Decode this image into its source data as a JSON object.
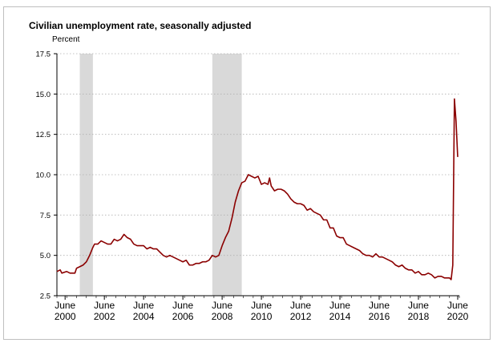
{
  "chart_data": {
    "type": "line",
    "title": "Civilian unemployment rate, seasonally adjusted",
    "ylabel": "Percent",
    "xlabel": "",
    "ylim": [
      2.5,
      17.5
    ],
    "xlim": [
      "2000-01",
      "2020-07"
    ],
    "y_ticks": [
      "2.5",
      "5.0",
      "7.5",
      "10.0",
      "12.5",
      "15.0",
      "17.5"
    ],
    "x_ticks": [
      {
        "month": "June",
        "year": "2000",
        "date": "2000-06"
      },
      {
        "month": "June",
        "year": "2002",
        "date": "2002-06"
      },
      {
        "month": "June",
        "year": "2004",
        "date": "2004-06"
      },
      {
        "month": "June",
        "year": "2006",
        "date": "2006-06"
      },
      {
        "month": "June",
        "year": "2008",
        "date": "2008-06"
      },
      {
        "month": "June",
        "year": "2010",
        "date": "2010-06"
      },
      {
        "month": "June",
        "year": "2012",
        "date": "2012-06"
      },
      {
        "month": "June",
        "year": "2014",
        "date": "2014-06"
      },
      {
        "month": "June",
        "year": "2016",
        "date": "2016-06"
      },
      {
        "month": "June",
        "year": "2018",
        "date": "2018-06"
      },
      {
        "month": "June",
        "year": "2020",
        "date": "2020-06"
      }
    ],
    "grid": "horizontal-dotted",
    "recessions": [
      {
        "start": "2001-03",
        "end": "2001-11"
      },
      {
        "start": "2007-12",
        "end": "2009-06"
      }
    ],
    "series": [
      {
        "color": "#8b0000",
        "points": [
          [
            "2000-01",
            4.0
          ],
          [
            "2000-03",
            4.1
          ],
          [
            "2000-04",
            3.9
          ],
          [
            "2000-07",
            4.0
          ],
          [
            "2000-09",
            3.9
          ],
          [
            "2000-10",
            3.9
          ],
          [
            "2000-12",
            3.9
          ],
          [
            "2001-01",
            4.2
          ],
          [
            "2001-03",
            4.3
          ],
          [
            "2001-05",
            4.4
          ],
          [
            "2001-07",
            4.6
          ],
          [
            "2001-09",
            5.0
          ],
          [
            "2001-11",
            5.5
          ],
          [
            "2001-12",
            5.7
          ],
          [
            "2002-02",
            5.7
          ],
          [
            "2002-04",
            5.9
          ],
          [
            "2002-06",
            5.8
          ],
          [
            "2002-08",
            5.7
          ],
          [
            "2002-10",
            5.7
          ],
          [
            "2002-12",
            6.0
          ],
          [
            "2003-02",
            5.9
          ],
          [
            "2003-04",
            6.0
          ],
          [
            "2003-06",
            6.3
          ],
          [
            "2003-08",
            6.1
          ],
          [
            "2003-10",
            6.0
          ],
          [
            "2003-12",
            5.7
          ],
          [
            "2004-02",
            5.6
          ],
          [
            "2004-04",
            5.6
          ],
          [
            "2004-06",
            5.6
          ],
          [
            "2004-08",
            5.4
          ],
          [
            "2004-10",
            5.5
          ],
          [
            "2004-12",
            5.4
          ],
          [
            "2005-02",
            5.4
          ],
          [
            "2005-04",
            5.2
          ],
          [
            "2005-06",
            5.0
          ],
          [
            "2005-08",
            4.9
          ],
          [
            "2005-10",
            5.0
          ],
          [
            "2005-12",
            4.9
          ],
          [
            "2006-02",
            4.8
          ],
          [
            "2006-04",
            4.7
          ],
          [
            "2006-06",
            4.6
          ],
          [
            "2006-08",
            4.7
          ],
          [
            "2006-10",
            4.4
          ],
          [
            "2006-12",
            4.4
          ],
          [
            "2007-02",
            4.5
          ],
          [
            "2007-04",
            4.5
          ],
          [
            "2007-06",
            4.6
          ],
          [
            "2007-08",
            4.6
          ],
          [
            "2007-10",
            4.7
          ],
          [
            "2007-12",
            5.0
          ],
          [
            "2008-02",
            4.9
          ],
          [
            "2008-04",
            5.0
          ],
          [
            "2008-06",
            5.6
          ],
          [
            "2008-08",
            6.1
          ],
          [
            "2008-10",
            6.5
          ],
          [
            "2008-12",
            7.3
          ],
          [
            "2009-02",
            8.3
          ],
          [
            "2009-04",
            9.0
          ],
          [
            "2009-06",
            9.5
          ],
          [
            "2009-08",
            9.6
          ],
          [
            "2009-10",
            10.0
          ],
          [
            "2009-12",
            9.9
          ],
          [
            "2010-02",
            9.8
          ],
          [
            "2010-04",
            9.9
          ],
          [
            "2010-06",
            9.4
          ],
          [
            "2010-08",
            9.5
          ],
          [
            "2010-10",
            9.4
          ],
          [
            "2010-11",
            9.8
          ],
          [
            "2010-12",
            9.3
          ],
          [
            "2011-02",
            9.0
          ],
          [
            "2011-04",
            9.1
          ],
          [
            "2011-06",
            9.1
          ],
          [
            "2011-08",
            9.0
          ],
          [
            "2011-10",
            8.8
          ],
          [
            "2011-12",
            8.5
          ],
          [
            "2012-02",
            8.3
          ],
          [
            "2012-04",
            8.2
          ],
          [
            "2012-06",
            8.2
          ],
          [
            "2012-08",
            8.1
          ],
          [
            "2012-10",
            7.8
          ],
          [
            "2012-12",
            7.9
          ],
          [
            "2013-02",
            7.7
          ],
          [
            "2013-04",
            7.6
          ],
          [
            "2013-06",
            7.5
          ],
          [
            "2013-08",
            7.2
          ],
          [
            "2013-10",
            7.2
          ],
          [
            "2013-12",
            6.7
          ],
          [
            "2014-02",
            6.7
          ],
          [
            "2014-04",
            6.2
          ],
          [
            "2014-06",
            6.1
          ],
          [
            "2014-08",
            6.1
          ],
          [
            "2014-10",
            5.7
          ],
          [
            "2014-12",
            5.6
          ],
          [
            "2015-02",
            5.5
          ],
          [
            "2015-04",
            5.4
          ],
          [
            "2015-06",
            5.3
          ],
          [
            "2015-08",
            5.1
          ],
          [
            "2015-10",
            5.0
          ],
          [
            "2015-12",
            5.0
          ],
          [
            "2016-02",
            4.9
          ],
          [
            "2016-04",
            5.1
          ],
          [
            "2016-06",
            4.9
          ],
          [
            "2016-08",
            4.9
          ],
          [
            "2016-10",
            4.8
          ],
          [
            "2016-12",
            4.7
          ],
          [
            "2017-02",
            4.6
          ],
          [
            "2017-04",
            4.4
          ],
          [
            "2017-06",
            4.3
          ],
          [
            "2017-08",
            4.4
          ],
          [
            "2017-10",
            4.2
          ],
          [
            "2017-12",
            4.1
          ],
          [
            "2018-02",
            4.1
          ],
          [
            "2018-04",
            3.9
          ],
          [
            "2018-06",
            4.0
          ],
          [
            "2018-08",
            3.8
          ],
          [
            "2018-10",
            3.8
          ],
          [
            "2018-12",
            3.9
          ],
          [
            "2019-02",
            3.8
          ],
          [
            "2019-04",
            3.6
          ],
          [
            "2019-06",
            3.7
          ],
          [
            "2019-08",
            3.7
          ],
          [
            "2019-10",
            3.6
          ],
          [
            "2019-12",
            3.6
          ],
          [
            "2020-01",
            3.6
          ],
          [
            "2020-02",
            3.5
          ],
          [
            "2020-03",
            4.4
          ],
          [
            "2020-04",
            14.7
          ],
          [
            "2020-05",
            13.3
          ],
          [
            "2020-06",
            11.1
          ]
        ]
      }
    ]
  }
}
